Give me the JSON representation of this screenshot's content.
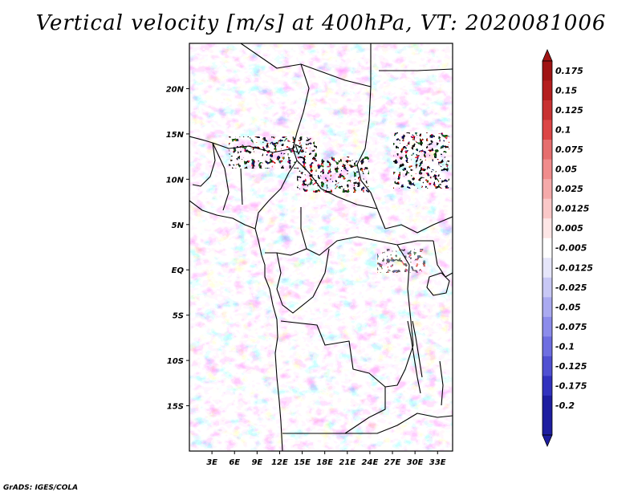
{
  "title": "Vertical velocity [m/s] at 400hPa, VT: 2020081006",
  "credit": "GrADS: IGES/COLA",
  "map": {
    "lon_range": [
      0,
      35
    ],
    "lat_range": [
      -20,
      25
    ],
    "lon_ticks": [
      {
        "value": 3,
        "label": "3E"
      },
      {
        "value": 6,
        "label": "6E"
      },
      {
        "value": 9,
        "label": "9E"
      },
      {
        "value": 12,
        "label": "12E"
      },
      {
        "value": 15,
        "label": "15E"
      },
      {
        "value": 18,
        "label": "18E"
      },
      {
        "value": 21,
        "label": "21E"
      },
      {
        "value": 24,
        "label": "24E"
      },
      {
        "value": 27,
        "label": "27E"
      },
      {
        "value": 30,
        "label": "30E"
      },
      {
        "value": 33,
        "label": "33E"
      }
    ],
    "lat_ticks": [
      {
        "value": 20,
        "label": "20N"
      },
      {
        "value": 15,
        "label": "15N"
      },
      {
        "value": 10,
        "label": "10N"
      },
      {
        "value": 5,
        "label": "5N"
      },
      {
        "value": 0,
        "label": "EQ"
      },
      {
        "value": -5,
        "label": "5S"
      },
      {
        "value": -10,
        "label": "10S"
      },
      {
        "value": -15,
        "label": "15S"
      }
    ]
  },
  "colorbar": {
    "levels": [
      {
        "label": "0.175",
        "color": "#a01414"
      },
      {
        "label": "0.15",
        "color": "#b41e1e"
      },
      {
        "label": "0.125",
        "color": "#c83232"
      },
      {
        "label": "0.1",
        "color": "#dc4646"
      },
      {
        "label": "0.075",
        "color": "#e66e6e"
      },
      {
        "label": "0.05",
        "color": "#f08c8c"
      },
      {
        "label": "0.025",
        "color": "#f5aaaa"
      },
      {
        "label": "0.0125",
        "color": "#fac8c8"
      },
      {
        "label": "0.005",
        "color": "#fde6e6"
      },
      {
        "label": "-0.005",
        "color": "#ffffff"
      },
      {
        "label": "-0.0125",
        "color": "#e6e6fa"
      },
      {
        "label": "-0.025",
        "color": "#c8c8f5"
      },
      {
        "label": "-0.05",
        "color": "#aaaaf0"
      },
      {
        "label": "-0.075",
        "color": "#8c8ceb"
      },
      {
        "label": "-0.1",
        "color": "#6e6ee1"
      },
      {
        "label": "-0.125",
        "color": "#5050d2"
      },
      {
        "label": "-0.175",
        "color": "#3232be"
      },
      {
        "label": "-0.2",
        "color": "#1e1ea0"
      }
    ],
    "end_colors": {
      "top": "#a01414",
      "bottom": "#1e1ea0"
    }
  }
}
